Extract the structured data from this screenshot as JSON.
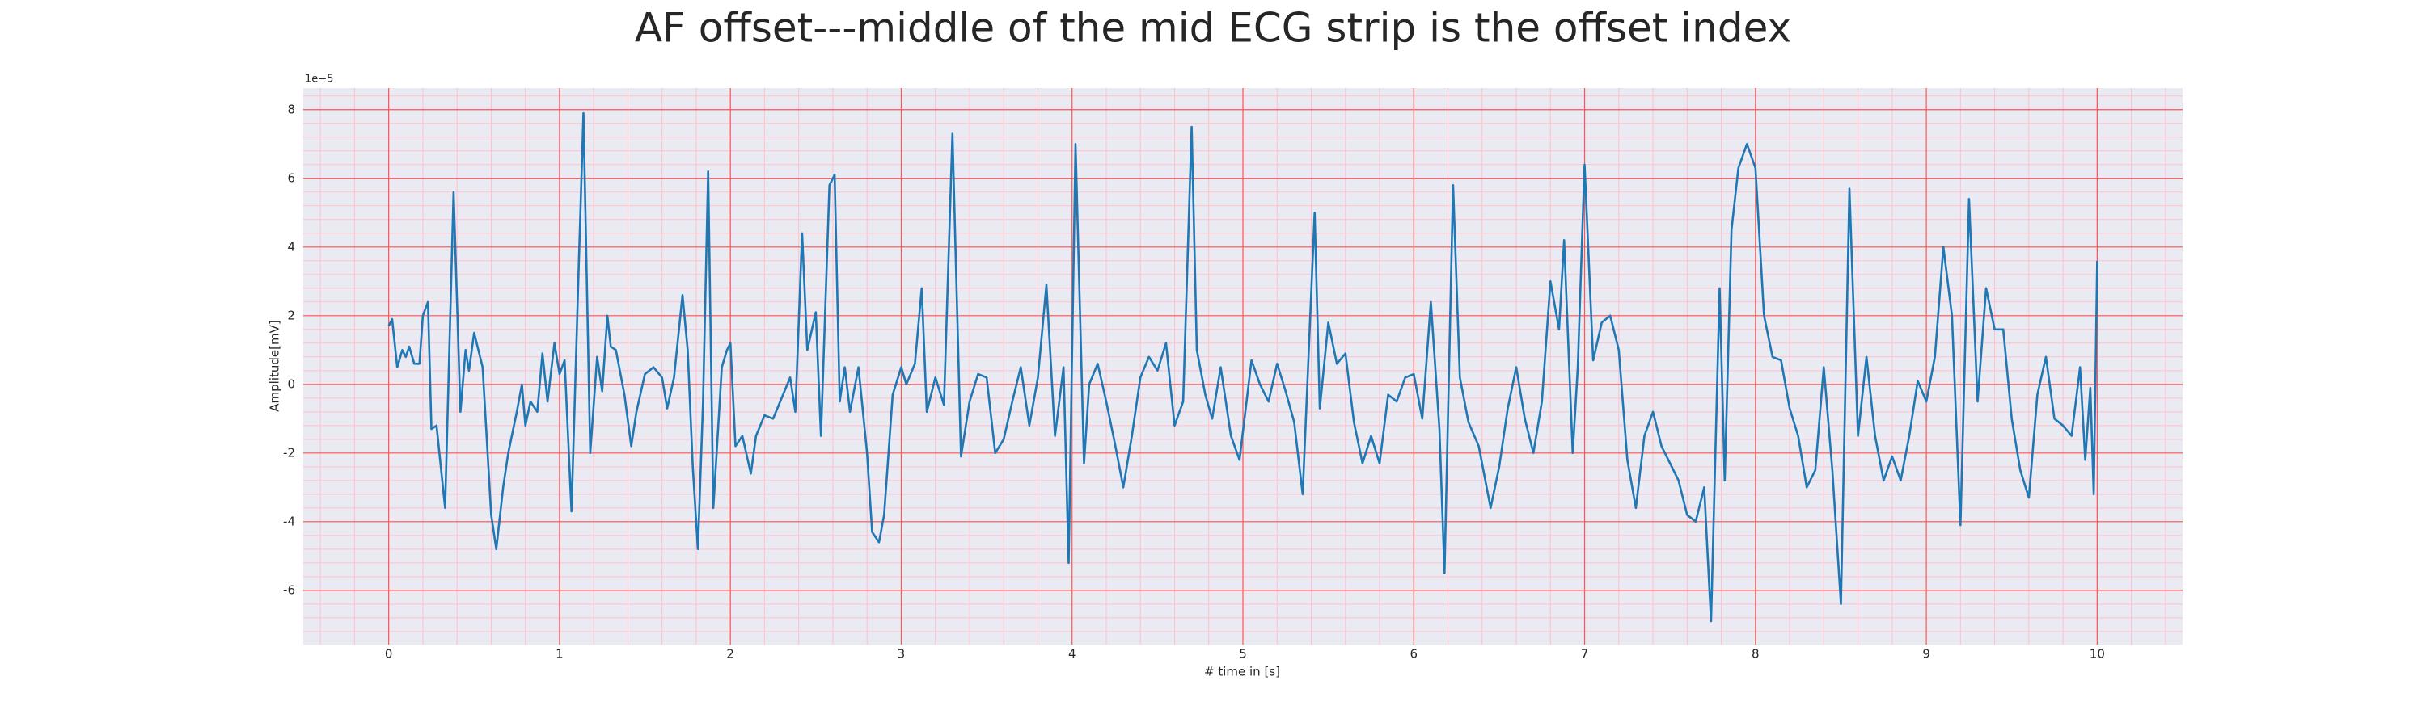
{
  "chart_data": {
    "type": "line",
    "title": "AF offset---middle of the mid ECG strip is the offset index",
    "xlabel": "# time in [s]",
    "ylabel": "Amplitude[mV]",
    "y_offset_label": "1e−5",
    "xlim": [
      -0.5,
      10.5
    ],
    "ylim": [
      -7.58,
      8.63
    ],
    "xticks": [
      0,
      1,
      2,
      3,
      4,
      5,
      6,
      7,
      8,
      9,
      10
    ],
    "yticks": [
      -6,
      -4,
      -2,
      0,
      2,
      4,
      6,
      8
    ],
    "grid": true,
    "minor_grid": true,
    "background": "#eaeaf2",
    "grid_color": "#ff5555",
    "minor_grid_color": "#ffc0cb",
    "series": [
      {
        "color": "#1f77b4",
        "x": [
          0,
          0.02,
          0.05,
          0.08,
          0.1,
          0.12,
          0.15,
          0.18,
          0.2,
          0.23,
          0.25,
          0.28,
          0.33,
          0.38,
          0.42,
          0.45,
          0.47,
          0.5,
          0.55,
          0.6,
          0.63,
          0.67,
          0.7,
          0.75,
          0.78,
          0.8,
          0.83,
          0.87,
          0.9,
          0.93,
          0.97,
          1.0,
          1.03,
          1.07,
          1.11,
          1.14,
          1.18,
          1.22,
          1.25,
          1.28,
          1.3,
          1.33,
          1.38,
          1.42,
          1.45,
          1.5,
          1.55,
          1.6,
          1.63,
          1.67,
          1.72,
          1.75,
          1.78,
          1.81,
          1.84,
          1.87,
          1.9,
          1.95,
          1.98,
          2.0,
          2.03,
          2.07,
          2.12,
          2.15,
          2.2,
          2.25,
          2.3,
          2.35,
          2.38,
          2.42,
          2.45,
          2.5,
          2.53,
          2.58,
          2.61,
          2.64,
          2.67,
          2.7,
          2.75,
          2.8,
          2.83,
          2.87,
          2.9,
          2.95,
          3.0,
          3.03,
          3.08,
          3.12,
          3.15,
          3.2,
          3.25,
          3.3,
          3.35,
          3.4,
          3.45,
          3.5,
          3.55,
          3.6,
          3.65,
          3.7,
          3.75,
          3.8,
          3.85,
          3.9,
          3.95,
          3.98,
          4.02,
          4.07,
          4.1,
          4.15,
          4.2,
          4.25,
          4.3,
          4.35,
          4.4,
          4.45,
          4.5,
          4.55,
          4.6,
          4.65,
          4.7,
          4.73,
          4.78,
          4.82,
          4.87,
          4.93,
          4.98,
          5.05,
          5.1,
          5.15,
          5.2,
          5.25,
          5.3,
          5.35,
          5.42,
          5.45,
          5.5,
          5.55,
          5.6,
          5.65,
          5.7,
          5.75,
          5.8,
          5.85,
          5.9,
          5.95,
          6.0,
          6.05,
          6.1,
          6.15,
          6.18,
          6.23,
          6.27,
          6.32,
          6.38,
          6.45,
          6.5,
          6.55,
          6.6,
          6.65,
          6.7,
          6.75,
          6.8,
          6.85,
          6.88,
          6.93,
          6.96,
          7.0,
          7.05,
          7.1,
          7.15,
          7.2,
          7.25,
          7.3,
          7.35,
          7.4,
          7.45,
          7.5,
          7.55,
          7.6,
          7.65,
          7.7,
          7.74,
          7.79,
          7.82,
          7.86,
          7.9,
          7.95,
          8.0,
          8.05,
          8.1,
          8.15,
          8.2,
          8.25,
          8.3,
          8.35,
          8.4,
          8.45,
          8.5,
          8.55,
          8.6,
          8.65,
          8.7,
          8.75,
          8.8,
          8.85,
          8.9,
          8.95,
          9.0,
          9.05,
          9.1,
          9.15,
          9.2,
          9.25,
          9.3,
          9.35,
          9.4,
          9.45,
          9.5,
          9.55,
          9.6,
          9.65,
          9.7,
          9.75,
          9.8,
          9.85,
          9.9,
          9.93,
          9.96,
          9.98,
          10.0
        ],
        "values": [
          1.7,
          1.9,
          0.5,
          1.0,
          0.8,
          1.1,
          0.6,
          0.6,
          2.0,
          2.4,
          -1.3,
          -1.2,
          -3.6,
          5.6,
          -0.8,
          1.0,
          0.4,
          1.5,
          0.5,
          -3.8,
          -4.8,
          -3.0,
          -2.0,
          -0.8,
          0.0,
          -1.2,
          -0.5,
          -0.8,
          0.9,
          -0.5,
          1.2,
          0.3,
          0.7,
          -3.7,
          3.0,
          7.9,
          -2.0,
          0.8,
          -0.2,
          2.0,
          1.1,
          1.0,
          -0.3,
          -1.8,
          -0.8,
          0.3,
          0.5,
          0.2,
          -0.7,
          0.2,
          2.6,
          1.0,
          -2.4,
          -4.8,
          -0.5,
          6.2,
          -3.6,
          0.5,
          1.0,
          1.2,
          -1.8,
          -1.5,
          -2.6,
          -1.5,
          -0.9,
          -1.0,
          -0.4,
          0.2,
          -0.8,
          4.4,
          1.0,
          2.1,
          -1.5,
          5.8,
          6.1,
          -0.5,
          0.5,
          -0.8,
          0.5,
          -2.0,
          -4.3,
          -4.6,
          -3.8,
          -0.3,
          0.5,
          0.0,
          0.6,
          2.8,
          -0.8,
          0.2,
          -0.6,
          7.3,
          -2.1,
          -0.5,
          0.3,
          0.2,
          -2.0,
          -1.6,
          -0.5,
          0.5,
          -1.2,
          0.2,
          2.9,
          -1.5,
          0.5,
          -5.2,
          7.0,
          -2.3,
          0.0,
          0.6,
          -0.5,
          -1.7,
          -3.0,
          -1.5,
          0.2,
          0.8,
          0.4,
          1.2,
          -1.2,
          -0.5,
          7.5,
          1.0,
          -0.3,
          -1.0,
          0.5,
          -1.5,
          -2.2,
          0.7,
          0.0,
          -0.5,
          0.6,
          -0.2,
          -1.1,
          -3.2,
          5.0,
          -0.7,
          1.8,
          0.6,
          0.9,
          -1.1,
          -2.3,
          -1.5,
          -2.3,
          -0.3,
          -0.5,
          0.2,
          0.3,
          -1.0,
          2.4,
          -1.3,
          -5.5,
          5.8,
          0.2,
          -1.1,
          -1.8,
          -3.6,
          -2.4,
          -0.7,
          0.5,
          -1.0,
          -2.0,
          -0.5,
          3.0,
          1.6,
          4.2,
          -2.0,
          0.5,
          6.4,
          0.7,
          1.8,
          2.0,
          1.0,
          -2.2,
          -3.6,
          -1.5,
          -0.8,
          -1.8,
          -2.3,
          -2.8,
          -3.8,
          -4.0,
          -3.0,
          -6.9,
          2.8,
          -2.8,
          4.5,
          6.3,
          7.0,
          6.3,
          2.0,
          0.8,
          0.7,
          -0.7,
          -1.5,
          -3.0,
          -2.5,
          0.5,
          -2.5,
          -6.4,
          5.7,
          -1.5,
          0.8,
          -1.5,
          -2.8,
          -2.1,
          -2.8,
          -1.5,
          0.1,
          -0.5,
          0.8,
          4.0,
          2.0,
          -4.1,
          5.4,
          -0.5,
          2.8,
          1.6,
          1.6,
          -1.0,
          -2.5,
          -3.3,
          -0.3,
          0.8,
          -1.0,
          -1.2,
          -1.5,
          0.5,
          -2.2,
          -0.1,
          -3.2,
          3.6
        ]
      }
    ]
  }
}
